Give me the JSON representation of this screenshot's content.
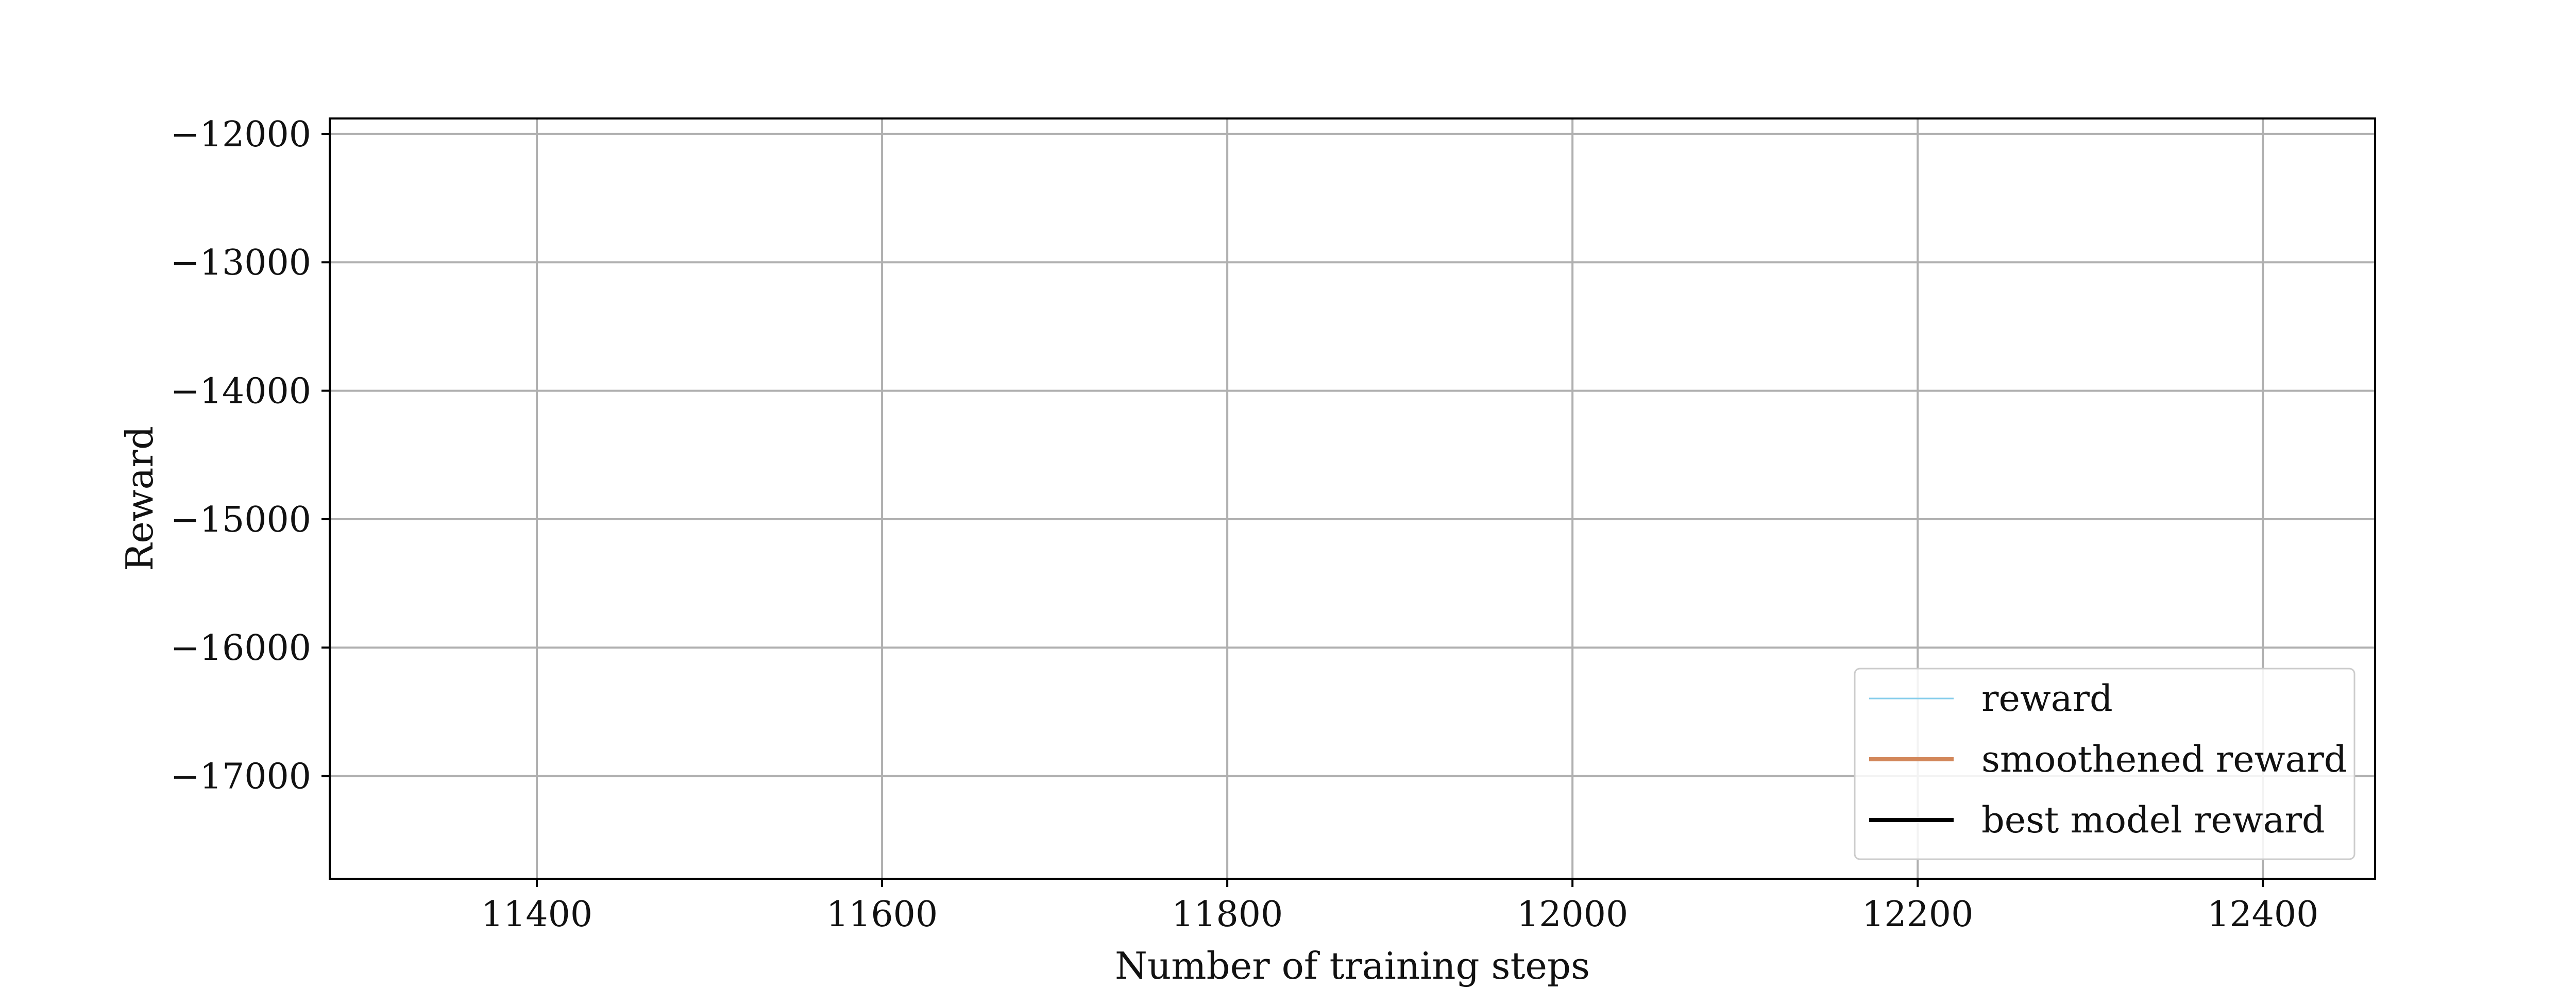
{
  "chart_data": {
    "type": "line",
    "title": "",
    "xlabel": "Number of training steps",
    "ylabel": "Reward",
    "xlim": [
      11280,
      12465
    ],
    "ylim": [
      -17800,
      -11880
    ],
    "x_ticks": [
      11400,
      11600,
      11800,
      12000,
      12200,
      12400
    ],
    "x_tick_labels": [
      "11400",
      "11600",
      "11800",
      "12000",
      "12200",
      "12400"
    ],
    "y_ticks": [
      -12000,
      -13000,
      -14000,
      -15000,
      -16000,
      -17000
    ],
    "y_tick_labels": [
      "−12000",
      "−13000",
      "−14000",
      "−15000",
      "−16000",
      "−17000"
    ],
    "grid": true,
    "legend_position": "lower-right",
    "series": [
      {
        "name": "reward",
        "color": "#87ceeb",
        "x": [],
        "y": []
      },
      {
        "name": "smoothened reward",
        "color": "#d2875a",
        "x": [],
        "y": []
      },
      {
        "name": "best model reward",
        "color": "#000000",
        "x": [],
        "y": []
      }
    ]
  }
}
